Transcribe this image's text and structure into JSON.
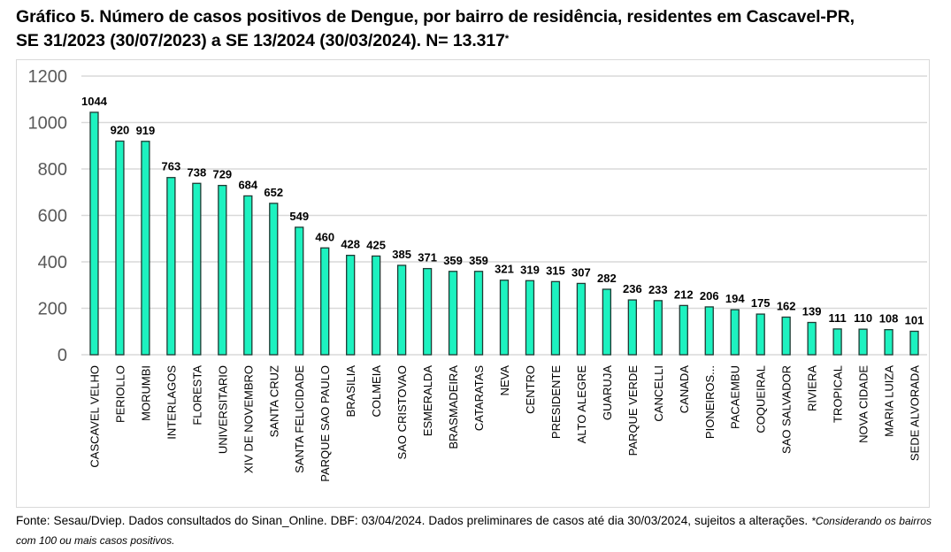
{
  "header": {
    "title_line1": "Gráfico 5. Número de casos positivos de Dengue, por bairro de residência, residentes em Cascavel-PR,",
    "title_line2": "SE 31/2023 (30/07/2023) a SE 13/2024 (30/03/2024). N= 13.317",
    "title_marker": "*"
  },
  "footer": {
    "source": "Fonte: Sesau/Dviep. Dados consultados do Sinan_Online. DBF: 03/04/2024. Dados preliminares de casos até dia 30/03/2024, sujeitos a alterações.",
    "note": "*Considerando  os bairros com 100 ou mais casos positivos."
  },
  "colors": {
    "bar_fill": "#1DF2C0",
    "bar_stroke": "#1F3A33",
    "gridline": "#d9d9d9",
    "axis_text": "#595959"
  },
  "chart_data": {
    "type": "bar",
    "title": "Número de casos positivos de Dengue, por bairro de residência, residentes em Cascavel-PR",
    "xlabel": "",
    "ylabel": "",
    "ylim": [
      0,
      1200
    ],
    "yticks": [
      0,
      200,
      400,
      600,
      800,
      1000,
      1200
    ],
    "grid": true,
    "legend": "none",
    "categories": [
      "CASCAVEL VELHO",
      "PERIOLLO",
      "MORUMBI",
      "INTERLAGOS",
      "FLORESTA",
      "UNIVERSITARIO",
      "XIV DE NOVEMBRO",
      "SANTA CRUZ",
      "SANTA FELICIDADE",
      "PARQUE SAO PAULO",
      "BRASILIA",
      "COLMEIA",
      "SAO CRISTOVAO",
      "ESMERALDA",
      "BRASMADEIRA",
      "CATARATAS",
      "NEVA",
      "CENTRO",
      "PRESIDENTE",
      "ALTO ALEGRE",
      "GUARUJA",
      "PARQUE VERDE",
      "CANCELLI",
      "CANADA",
      "PIONEIROS...",
      "PACAEMBU",
      "COQUEIRAL",
      "SAO SALVADOR",
      "RIVIERA",
      "TROPICAL",
      "NOVA CIDADE",
      "MARIA LUIZA",
      "SEDE ALVORADA"
    ],
    "values": [
      1044,
      920,
      919,
      763,
      738,
      729,
      684,
      652,
      549,
      460,
      428,
      425,
      385,
      371,
      359,
      359,
      321,
      319,
      315,
      307,
      282,
      236,
      233,
      212,
      206,
      194,
      175,
      162,
      139,
      111,
      110,
      108,
      101
    ],
    "data_labels": true
  }
}
